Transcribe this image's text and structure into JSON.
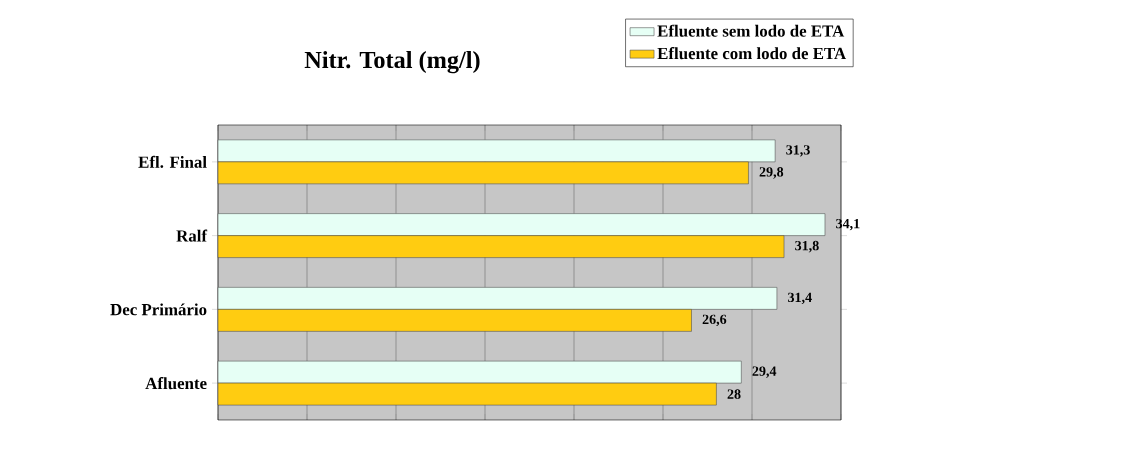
{
  "chart_data": {
    "type": "bar",
    "orientation": "horizontal",
    "title": "Nitr. Total (mg/l)",
    "categories": [
      "Efl. Final",
      "Ralf",
      "Dec Primário",
      "Afluente"
    ],
    "series": [
      {
        "name": "Efluente sem lodo de ETA",
        "color": "#e6fff5",
        "values": [
          31.3,
          34.1,
          31.4,
          29.4
        ],
        "value_labels": [
          "31,3",
          "34,1",
          "31,4",
          "29,4"
        ]
      },
      {
        "name": "Efluente com lodo de ETA",
        "color": "#ffcc11",
        "values": [
          29.8,
          31.8,
          26.6,
          28
        ],
        "value_labels": [
          "29,8",
          "31,8",
          "26,6",
          "28"
        ]
      }
    ],
    "xlim": [
      0,
      35
    ],
    "xticks": [
      {
        "value": 0,
        "label": null
      },
      {
        "value": 5,
        "label": null
      },
      {
        "value": 10,
        "label": null
      },
      {
        "value": 15,
        "label": null
      },
      {
        "value": 20,
        "label": null
      },
      {
        "value": 25,
        "label": null
      },
      {
        "value": 30,
        "label": null
      },
      {
        "value": 35,
        "label": null
      }
    ],
    "grid": "x",
    "legend": "top right",
    "tick_labels": "y"
  }
}
